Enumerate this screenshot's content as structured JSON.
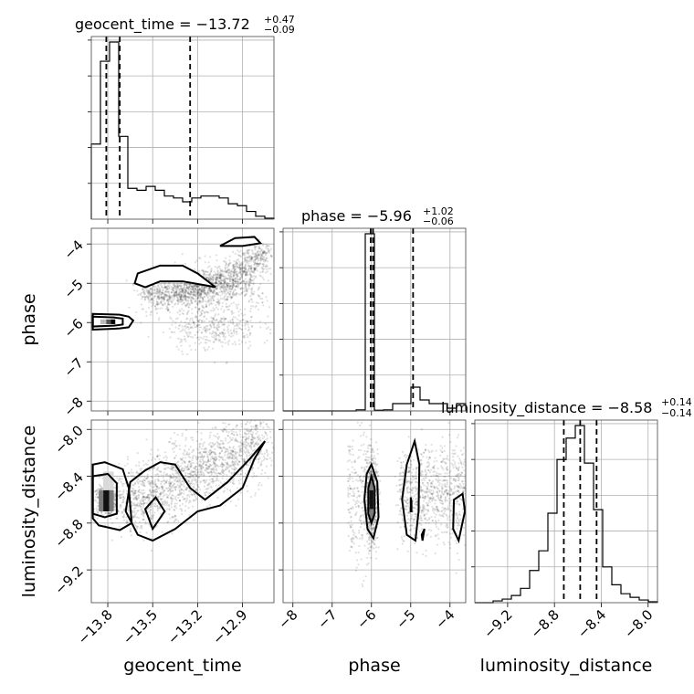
{
  "chart_data": {
    "type": "corner",
    "parameters": [
      "geocent_time",
      "phase",
      "luminosity_distance"
    ],
    "titles": [
      {
        "param": "geocent_time",
        "prefix": "geocent_time = ",
        "median": "−13.72",
        "upper": "+0.47",
        "lower": "−0.09"
      },
      {
        "param": "phase",
        "prefix": "phase = ",
        "median": "−5.96",
        "upper": "+1.02",
        "lower": "−0.06"
      },
      {
        "param": "luminosity_distance",
        "prefix": "luminosity_distance = ",
        "median": "−8.58",
        "upper": "+0.14",
        "lower": "−0.14"
      }
    ],
    "axis_labels": {
      "x": [
        "geocent_time",
        "phase",
        "luminosity_distance"
      ],
      "y": [
        "phase",
        "luminosity_distance"
      ]
    },
    "ranges": {
      "geocent_time": [
        -13.91,
        -12.69
      ],
      "phase": [
        -8.25,
        -3.6
      ],
      "luminosity_distance": [
        -9.48,
        -7.92
      ]
    },
    "ticks": {
      "geocent_time": {
        "values": [
          -13.8,
          -13.5,
          -13.2,
          -12.9
        ],
        "labels": [
          "−13.8",
          "−13.5",
          "−13.2",
          "−12.9"
        ]
      },
      "phase_x": {
        "values": [
          -8,
          -7,
          -6,
          -5,
          -4
        ],
        "labels": [
          "−8",
          "−7",
          "−6",
          "−5",
          "−4"
        ]
      },
      "phase_y": {
        "values": [
          -8,
          -7,
          -6,
          -5,
          -4
        ],
        "labels": [
          "−8",
          "−7",
          "−6",
          "−5",
          "−4"
        ]
      },
      "luminosity_distance": {
        "values": [
          -9.2,
          -8.8,
          -8.4,
          -8.0
        ],
        "labels": [
          "−9.2",
          "−8.8",
          "−8.4",
          "−8.0"
        ]
      }
    },
    "histograms": {
      "geocent_time": {
        "edges": [
          -13.91,
          -13.849,
          -13.788,
          -13.727,
          -13.666,
          -13.605,
          -13.544,
          -13.483,
          -13.422,
          -13.361,
          -13.3,
          -13.239,
          -13.178,
          -13.117,
          -13.056,
          -12.995,
          -12.934,
          -12.873,
          -12.812,
          -12.751,
          -12.69
        ],
        "counts": [
          0.39,
          0.82,
          0.92,
          0.43,
          0.16,
          0.15,
          0.17,
          0.15,
          0.12,
          0.11,
          0.09,
          0.11,
          0.12,
          0.12,
          0.11,
          0.08,
          0.07,
          0.04,
          0.015,
          0.005
        ],
        "quantiles": [
          -13.81,
          -13.72,
          -13.25
        ]
      },
      "phase": {
        "edges": [
          -8.25,
          -8.0175,
          -7.785,
          -7.5525,
          -7.32,
          -7.0875,
          -6.855,
          -6.6225,
          -6.39,
          -6.1575,
          -5.925,
          -5.6925,
          -5.46,
          -5.2275,
          -4.995,
          -4.7625,
          -4.53,
          -4.2975,
          -4.065,
          -3.8325,
          -3.6
        ],
        "counts": [
          0,
          0,
          0,
          0,
          0,
          0,
          0,
          0,
          0.006,
          0.97,
          0.004,
          0.006,
          0.04,
          0.04,
          0.13,
          0.06,
          0.04,
          0.04,
          0.015,
          0.04
        ],
        "quantiles": [
          -6.02,
          -5.96,
          -4.94
        ]
      },
      "luminosity_distance": {
        "edges": [
          -9.48,
          -9.402,
          -9.324,
          -9.246,
          -9.168,
          -9.09,
          -9.012,
          -8.934,
          -8.856,
          -8.778,
          -8.7,
          -8.622,
          -8.544,
          -8.466,
          -8.388,
          -8.31,
          -8.232,
          -8.154,
          -8.076,
          -7.998,
          -7.92
        ],
        "counts": [
          0,
          0,
          0.01,
          0.02,
          0.04,
          0.08,
          0.18,
          0.29,
          0.5,
          0.8,
          0.92,
          0.99,
          0.78,
          0.52,
          0.2,
          0.1,
          0.05,
          0.03,
          0.015,
          0.005
        ],
        "quantiles": [
          -8.72,
          -8.58,
          -8.44
        ]
      }
    }
  }
}
